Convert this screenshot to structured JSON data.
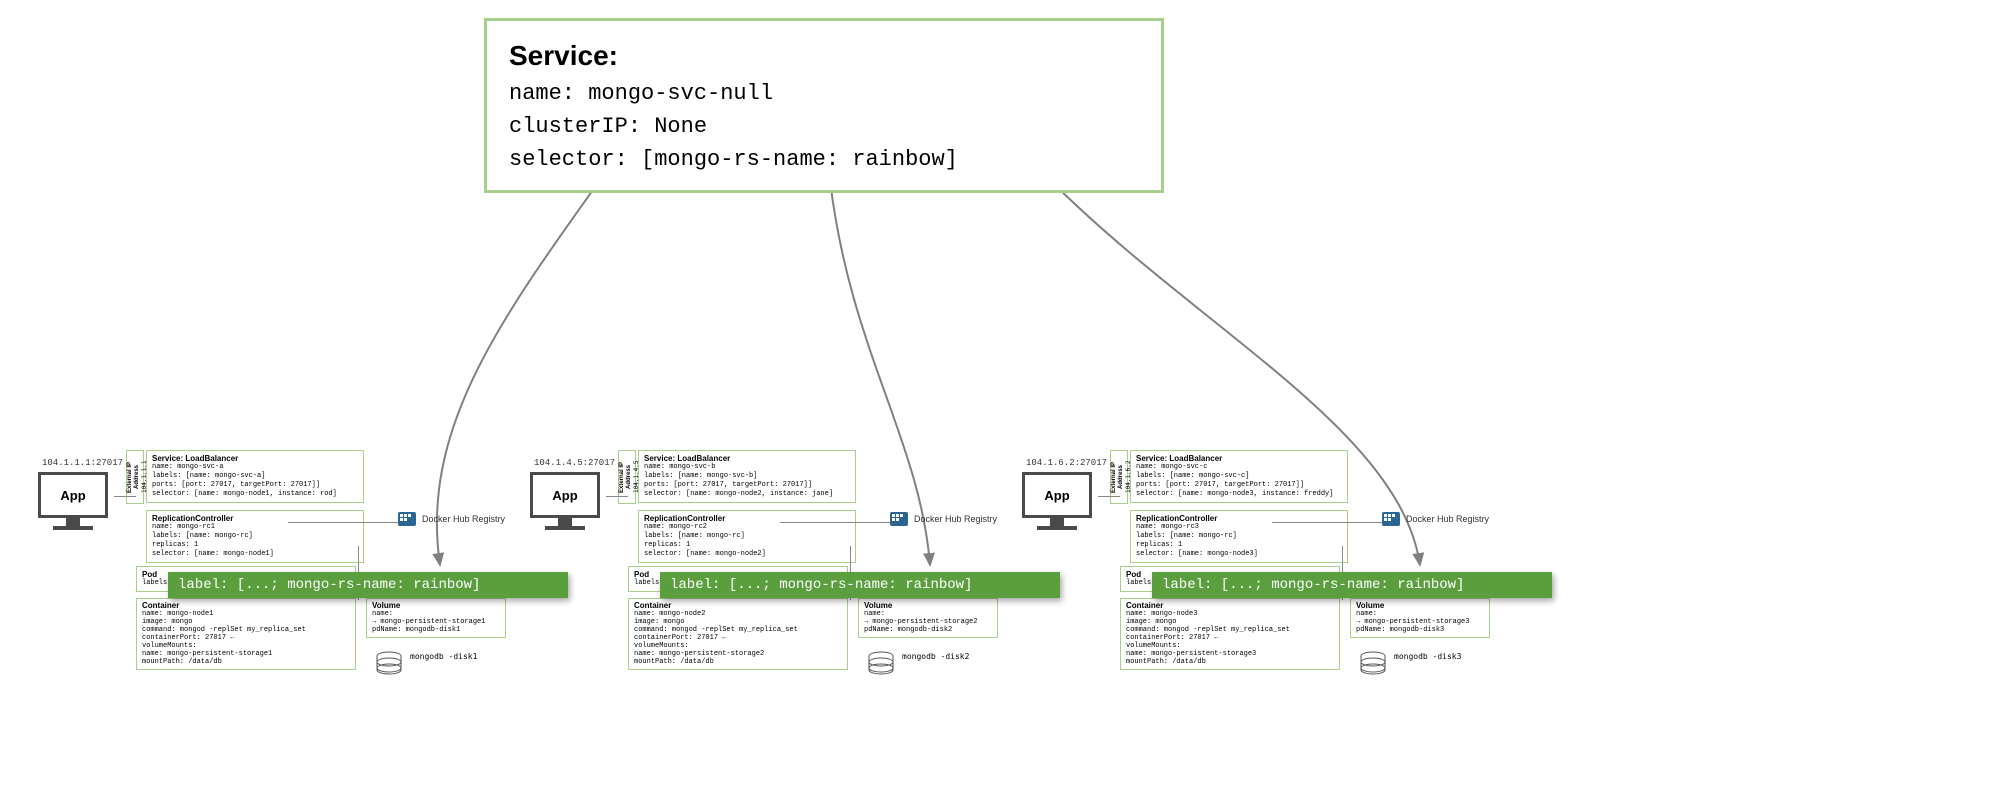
{
  "colors": {
    "border_green": "#a8d08d",
    "callout_green": "#5a9e3e",
    "arrow": "#808080",
    "monitor": "#4a4a4a",
    "docker": "#2a6693",
    "background": "#ffffff"
  },
  "service": {
    "title": "Service:",
    "lines": {
      "name": "name: mongo-svc-null",
      "clusterIP": "clusterIP: None",
      "selector": "selector: [mongo-rs-name: rainbow]"
    }
  },
  "callout_label": "label: [...; mongo-rs-name: rainbow]",
  "docker_hub_label": "Docker Hub Registry",
  "app_label": "App",
  "ext_ip_label": "External IP Address",
  "clusters": [
    {
      "ip": "104.1.1.1:27017",
      "ext_addr": "104.1.1.1",
      "svc": {
        "hdr": "Service: LoadBalancer",
        "name": "name: mongo-svc-a",
        "labels": "labels: [name: mongo-svc-a]",
        "ports": "ports: [port: 27017, targetPort: 27017]]",
        "selector": "selector: [name: mongo-node1, instance: rod]"
      },
      "rc": {
        "hdr": "ReplicationController",
        "name": "name: mongo-rc1",
        "labels": "labels: [name: mongo-rc]",
        "replicas": "replicas: 1",
        "selector": "selector: [name: mongo-node1]"
      },
      "pod": {
        "hdr": "Pod",
        "labels": "labels: [name: mongo-node1; instance: rod]"
      },
      "container": {
        "hdr": "Container",
        "name": "name: mongo-node1",
        "image": "image: mongo",
        "command": "command: mongod -replSet my_replica_set",
        "port": "containerPort: 27017 ←",
        "vm": "volumeMounts:",
        "vm_name": "  name: mongo-persistent-storage1",
        "vm_path": "  mountPath: /data/db"
      },
      "volume": {
        "hdr": "Volume",
        "name": "name:",
        "name2": "→ mongo-persistent-storage1",
        "pd": "pdName: mongodb-disk1"
      },
      "disk": "mongodb\n-disk1"
    },
    {
      "ip": "104.1.4.5:27017",
      "ext_addr": "104.1.4.5",
      "svc": {
        "hdr": "Service: LoadBalancer",
        "name": "name: mongo-svc-b",
        "labels": "labels: [name: mongo-svc-b]",
        "ports": "ports: [port: 27017, targetPort: 27017]]",
        "selector": "selector: [name: mongo-node2, instance: jane]"
      },
      "rc": {
        "hdr": "ReplicationController",
        "name": "name: mongo-rc2",
        "labels": "labels: [name: mongo-rc]",
        "replicas": "replicas: 1",
        "selector": "selector: [name: mongo-node2]"
      },
      "pod": {
        "hdr": "Pod",
        "labels": "labels: [name: mongo-node2; instance: jane]"
      },
      "container": {
        "hdr": "Container",
        "name": "name: mongo-node2",
        "image": "image: mongo",
        "command": "command: mongod -replSet my_replica_set",
        "port": "containerPort: 27017 ←",
        "vm": "volumeMounts:",
        "vm_name": "  name: mongo-persistent-storage2",
        "vm_path": "  mountPath: /data/db"
      },
      "volume": {
        "hdr": "Volume",
        "name": "name:",
        "name2": "→ mongo-persistent-storage2",
        "pd": "pdName: mongodb-disk2"
      },
      "disk": "mongodb\n-disk2"
    },
    {
      "ip": "104.1.6.2:27017",
      "ext_addr": "104.1.6.2",
      "svc": {
        "hdr": "Service: LoadBalancer",
        "name": "name: mongo-svc-c",
        "labels": "labels: [name: mongo-svc-c]",
        "ports": "ports: [port: 27017, targetPort: 27017]]",
        "selector": "selector: [name: mongo-node3, instance: freddy]"
      },
      "rc": {
        "hdr": "ReplicationController",
        "name": "name: mongo-rc3",
        "labels": "labels: [name: mongo-rc]",
        "replicas": "replicas: 1",
        "selector": "selector: [name: mongo-node3]"
      },
      "pod": {
        "hdr": "Pod",
        "labels": "labels: [name: mongo-node3; instance: freddy]"
      },
      "container": {
        "hdr": "Container",
        "name": "name: mongo-node3",
        "image": "image: mongo",
        "command": "command: mongod -replSet my_replica_set",
        "port": "containerPort: 27017 ←",
        "vm": "volumeMounts:",
        "vm_name": "  name: mongo-persistent-storage3",
        "vm_path": "  mountPath: /data/db"
      },
      "volume": {
        "hdr": "Volume",
        "name": "name:",
        "name2": "→ mongo-persistent-storage3",
        "pd": "pdName: mongodb-disk3"
      },
      "disk": "mongodb\n-disk3"
    }
  ],
  "arrows": {
    "stroke_width": 2,
    "paths": [
      "M 600 180 C 500 320, 420 430, 440 565",
      "M 830 180 C 850 350, 920 440, 930 565",
      "M 1050 180 C 1200 330, 1400 430, 1420 565"
    ]
  }
}
